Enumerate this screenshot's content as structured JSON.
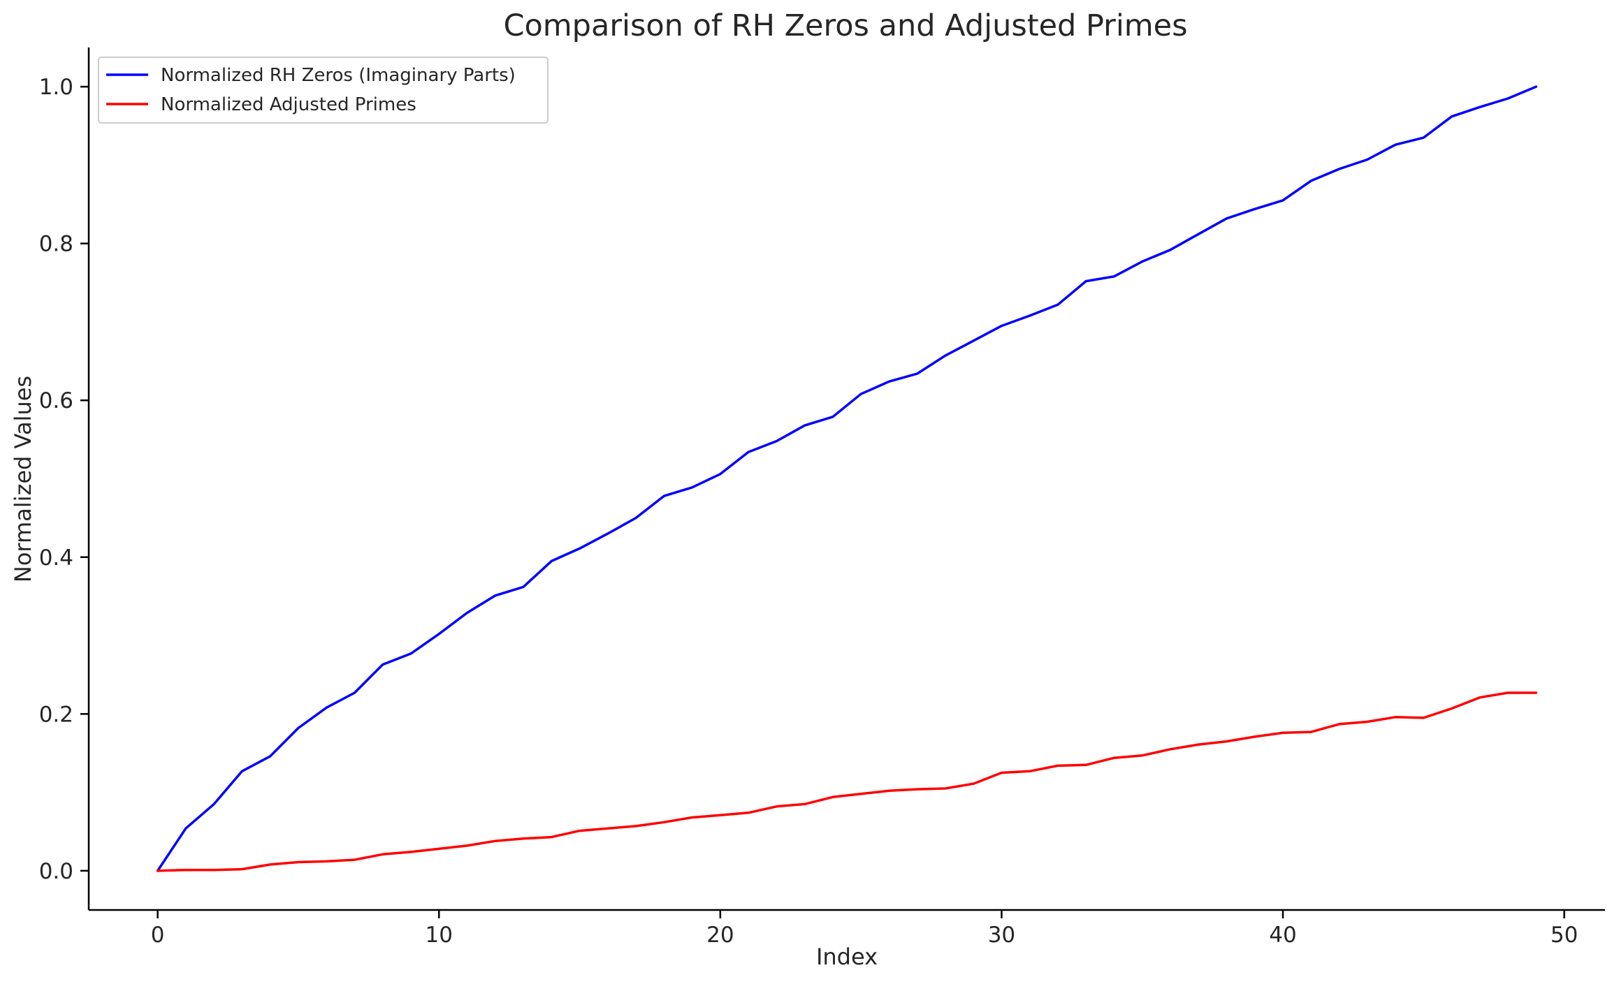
{
  "chart_data": {
    "type": "line",
    "title": "Comparison of RH Zeros and Adjusted Primes",
    "xlabel": "Index",
    "ylabel": "Normalized Values",
    "xlim": [
      -2.45,
      51.45
    ],
    "ylim": [
      -0.05,
      1.05
    ],
    "xticks": [
      0,
      10,
      20,
      30,
      40,
      50
    ],
    "xtick_labels": [
      "0",
      "10",
      "20",
      "30",
      "40",
      "50"
    ],
    "yticks": [
      0.0,
      0.2,
      0.4,
      0.6,
      0.8,
      1.0
    ],
    "ytick_labels": [
      "0.0",
      "0.2",
      "0.4",
      "0.6",
      "0.8",
      "1.0"
    ],
    "grid": false,
    "legend_position": "top-left",
    "x": [
      0,
      1,
      2,
      3,
      4,
      5,
      6,
      7,
      8,
      9,
      10,
      11,
      12,
      13,
      14,
      15,
      16,
      17,
      18,
      19,
      20,
      21,
      22,
      23,
      24,
      25,
      26,
      27,
      28,
      29,
      30,
      31,
      32,
      33,
      34,
      35,
      36,
      37,
      38,
      39,
      40,
      41,
      42,
      43,
      44,
      45,
      46,
      47,
      48,
      49
    ],
    "series": [
      {
        "name": "Normalized RH Zeros (Imaginary Parts)",
        "color": "#0000ff",
        "values": [
          0.0,
          0.054,
          0.085,
          0.127,
          0.146,
          0.182,
          0.208,
          0.227,
          0.263,
          0.277,
          0.302,
          0.329,
          0.351,
          0.362,
          0.395,
          0.411,
          0.43,
          0.45,
          0.478,
          0.489,
          0.506,
          0.534,
          0.548,
          0.568,
          0.579,
          0.608,
          0.624,
          0.634,
          0.657,
          0.676,
          0.695,
          0.708,
          0.722,
          0.752,
          0.758,
          0.777,
          0.792,
          0.812,
          0.832,
          0.844,
          0.855,
          0.88,
          0.895,
          0.907,
          0.926,
          0.935,
          0.962,
          0.974,
          0.985,
          1.0
        ]
      },
      {
        "name": "Normalized Adjusted Primes",
        "color": "#ff0000",
        "values": [
          0.0,
          0.001,
          0.001,
          0.002,
          0.008,
          0.011,
          0.012,
          0.014,
          0.021,
          0.024,
          0.028,
          0.032,
          0.038,
          0.041,
          0.043,
          0.051,
          0.054,
          0.057,
          0.062,
          0.068,
          0.071,
          0.074,
          0.082,
          0.085,
          0.094,
          0.098,
          0.102,
          0.104,
          0.105,
          0.111,
          0.125,
          0.127,
          0.134,
          0.135,
          0.144,
          0.147,
          0.155,
          0.161,
          0.165,
          0.171,
          0.176,
          0.177,
          0.187,
          0.19,
          0.196,
          0.195,
          0.207,
          0.221,
          0.227,
          0.227
        ]
      }
    ]
  }
}
